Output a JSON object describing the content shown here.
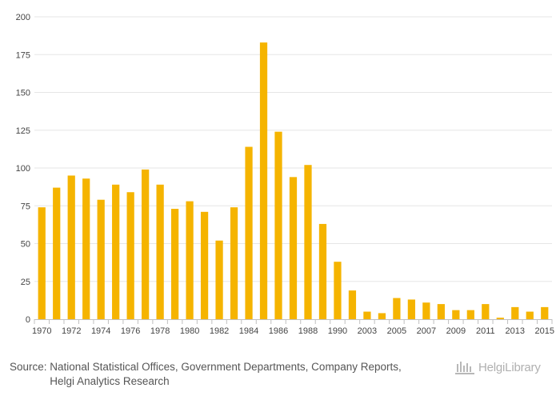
{
  "chart_data": {
    "type": "bar",
    "title": "",
    "xlabel": "",
    "ylabel": "",
    "ylim": [
      0,
      200
    ],
    "yticks": [
      0,
      25,
      50,
      75,
      100,
      125,
      150,
      175,
      200
    ],
    "color": "#f5b400",
    "categories": [
      "1970",
      "1971",
      "1972",
      "1973",
      "1974",
      "1975",
      "1976",
      "1977",
      "1978",
      "1979",
      "1980",
      "1981",
      "1982",
      "1983",
      "1984",
      "1985",
      "1986",
      "1987",
      "1988",
      "1989",
      "1990",
      "1991",
      "2003",
      "2004",
      "2005",
      "2006",
      "2007",
      "2008",
      "2009",
      "2010",
      "2011",
      "2012",
      "2013",
      "2014",
      "2015"
    ],
    "tick_labels": [
      "1970",
      "",
      "1972",
      "",
      "1974",
      "",
      "1976",
      "",
      "1978",
      "",
      "1980",
      "",
      "1982",
      "",
      "1984",
      "",
      "1986",
      "",
      "1988",
      "",
      "1990",
      "",
      "2003",
      "",
      "2005",
      "",
      "2007",
      "",
      "2009",
      "",
      "2011",
      "",
      "2013",
      "",
      "2015"
    ],
    "values": [
      74,
      87,
      95,
      93,
      79,
      89,
      84,
      99,
      89,
      73,
      78,
      71,
      52,
      74,
      114,
      183,
      124,
      94,
      102,
      63,
      38,
      19,
      5,
      4,
      14,
      13,
      11,
      10,
      6,
      6,
      10,
      1,
      8,
      5,
      8
    ]
  },
  "footer": {
    "source_label": "Source:",
    "source_line1": "National Statistical Offices, Government Departments, Company Reports,",
    "source_line2": "Helgi Analytics Research",
    "brand": "HelgiLibrary"
  }
}
